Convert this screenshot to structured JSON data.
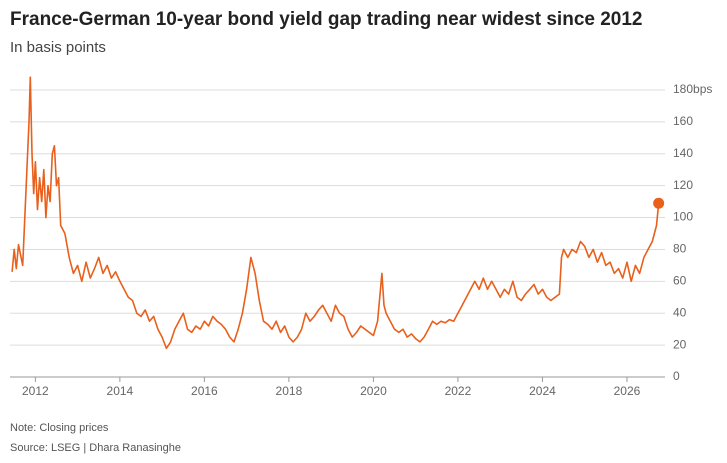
{
  "chart_data": {
    "type": "line",
    "title": "France-German 10-year bond yield gap trading near widest since 2012",
    "subtitle": "In basis points",
    "note": "Note: Closing prices",
    "source": "Source: LSEG | Dhara Ranasinghe",
    "xlim": [
      2011.4,
      2026.9
    ],
    "xticks": [
      2012,
      2014,
      2016,
      2018,
      2020,
      2022,
      2024,
      2026
    ],
    "ylim": [
      0,
      180
    ],
    "yticks": [
      0,
      20,
      40,
      60,
      80,
      100,
      120,
      140,
      160,
      {
        "value": 180,
        "label": "180bps"
      }
    ],
    "grid": true,
    "series": [
      {
        "name": "France-German 10-year bond yield gap",
        "color": "#e8601c",
        "x": [
          2011.45,
          2011.5,
          2011.55,
          2011.6,
          2011.7,
          2011.75,
          2011.8,
          2011.85,
          2011.88,
          2011.92,
          2011.96,
          2012.0,
          2012.05,
          2012.1,
          2012.15,
          2012.2,
          2012.25,
          2012.3,
          2012.35,
          2012.4,
          2012.45,
          2012.5,
          2012.55,
          2012.6,
          2012.7,
          2012.8,
          2012.9,
          2013.0,
          2013.1,
          2013.2,
          2013.3,
          2013.4,
          2013.5,
          2013.6,
          2013.7,
          2013.8,
          2013.9,
          2014.0,
          2014.1,
          2014.2,
          2014.3,
          2014.4,
          2014.5,
          2014.6,
          2014.7,
          2014.8,
          2014.9,
          2015.0,
          2015.1,
          2015.2,
          2015.3,
          2015.4,
          2015.5,
          2015.6,
          2015.7,
          2015.8,
          2015.9,
          2016.0,
          2016.1,
          2016.2,
          2016.3,
          2016.4,
          2016.5,
          2016.6,
          2016.7,
          2016.8,
          2016.9,
          2017.0,
          2017.1,
          2017.2,
          2017.3,
          2017.4,
          2017.5,
          2017.6,
          2017.7,
          2017.8,
          2017.9,
          2018.0,
          2018.1,
          2018.2,
          2018.3,
          2018.4,
          2018.5,
          2018.6,
          2018.7,
          2018.8,
          2018.9,
          2019.0,
          2019.1,
          2019.2,
          2019.3,
          2019.4,
          2019.5,
          2019.6,
          2019.7,
          2019.8,
          2019.9,
          2020.0,
          2020.1,
          2020.2,
          2020.25,
          2020.3,
          2020.4,
          2020.5,
          2020.6,
          2020.7,
          2020.8,
          2020.9,
          2021.0,
          2021.1,
          2021.2,
          2021.3,
          2021.4,
          2021.5,
          2021.6,
          2021.7,
          2021.8,
          2021.9,
          2022.0,
          2022.1,
          2022.2,
          2022.3,
          2022.4,
          2022.5,
          2022.6,
          2022.7,
          2022.8,
          2022.9,
          2023.0,
          2023.1,
          2023.2,
          2023.3,
          2023.4,
          2023.5,
          2023.6,
          2023.7,
          2023.8,
          2023.9,
          2024.0,
          2024.1,
          2024.2,
          2024.3,
          2024.4,
          2024.45,
          2024.5,
          2024.6,
          2024.7,
          2024.8,
          2024.9,
          2025.0,
          2025.1,
          2025.2,
          2025.3,
          2025.4,
          2025.5,
          2025.6,
          2025.7,
          2025.8,
          2025.9,
          2026.0,
          2026.1,
          2026.2,
          2026.3,
          2026.4,
          2026.5,
          2026.6,
          2026.7,
          2026.75
        ],
        "values": [
          66,
          80,
          68,
          83,
          70,
          100,
          130,
          160,
          188,
          140,
          115,
          135,
          105,
          125,
          110,
          130,
          100,
          120,
          110,
          140,
          145,
          120,
          125,
          95,
          90,
          75,
          65,
          70,
          60,
          72,
          62,
          68,
          75,
          65,
          70,
          62,
          66,
          60,
          55,
          50,
          48,
          40,
          38,
          42,
          35,
          38,
          30,
          25,
          18,
          22,
          30,
          35,
          40,
          30,
          28,
          32,
          30,
          35,
          32,
          38,
          35,
          33,
          30,
          25,
          22,
          30,
          40,
          55,
          75,
          65,
          48,
          35,
          33,
          30,
          35,
          28,
          32,
          25,
          22,
          25,
          30,
          40,
          35,
          38,
          42,
          45,
          40,
          35,
          45,
          40,
          38,
          30,
          25,
          28,
          32,
          30,
          28,
          26,
          35,
          65,
          45,
          40,
          35,
          30,
          28,
          30,
          25,
          27,
          24,
          22,
          25,
          30,
          35,
          33,
          35,
          34,
          36,
          35,
          40,
          45,
          50,
          55,
          60,
          55,
          62,
          55,
          60,
          55,
          50,
          55,
          52,
          60,
          50,
          48,
          52,
          55,
          58,
          52,
          55,
          50,
          48,
          50,
          52,
          75,
          80,
          75,
          80,
          78,
          85,
          82,
          75,
          80,
          72,
          78,
          70,
          72,
          65,
          68,
          62,
          72,
          60,
          70,
          65,
          75,
          80,
          85,
          95,
          109
        ]
      }
    ]
  }
}
